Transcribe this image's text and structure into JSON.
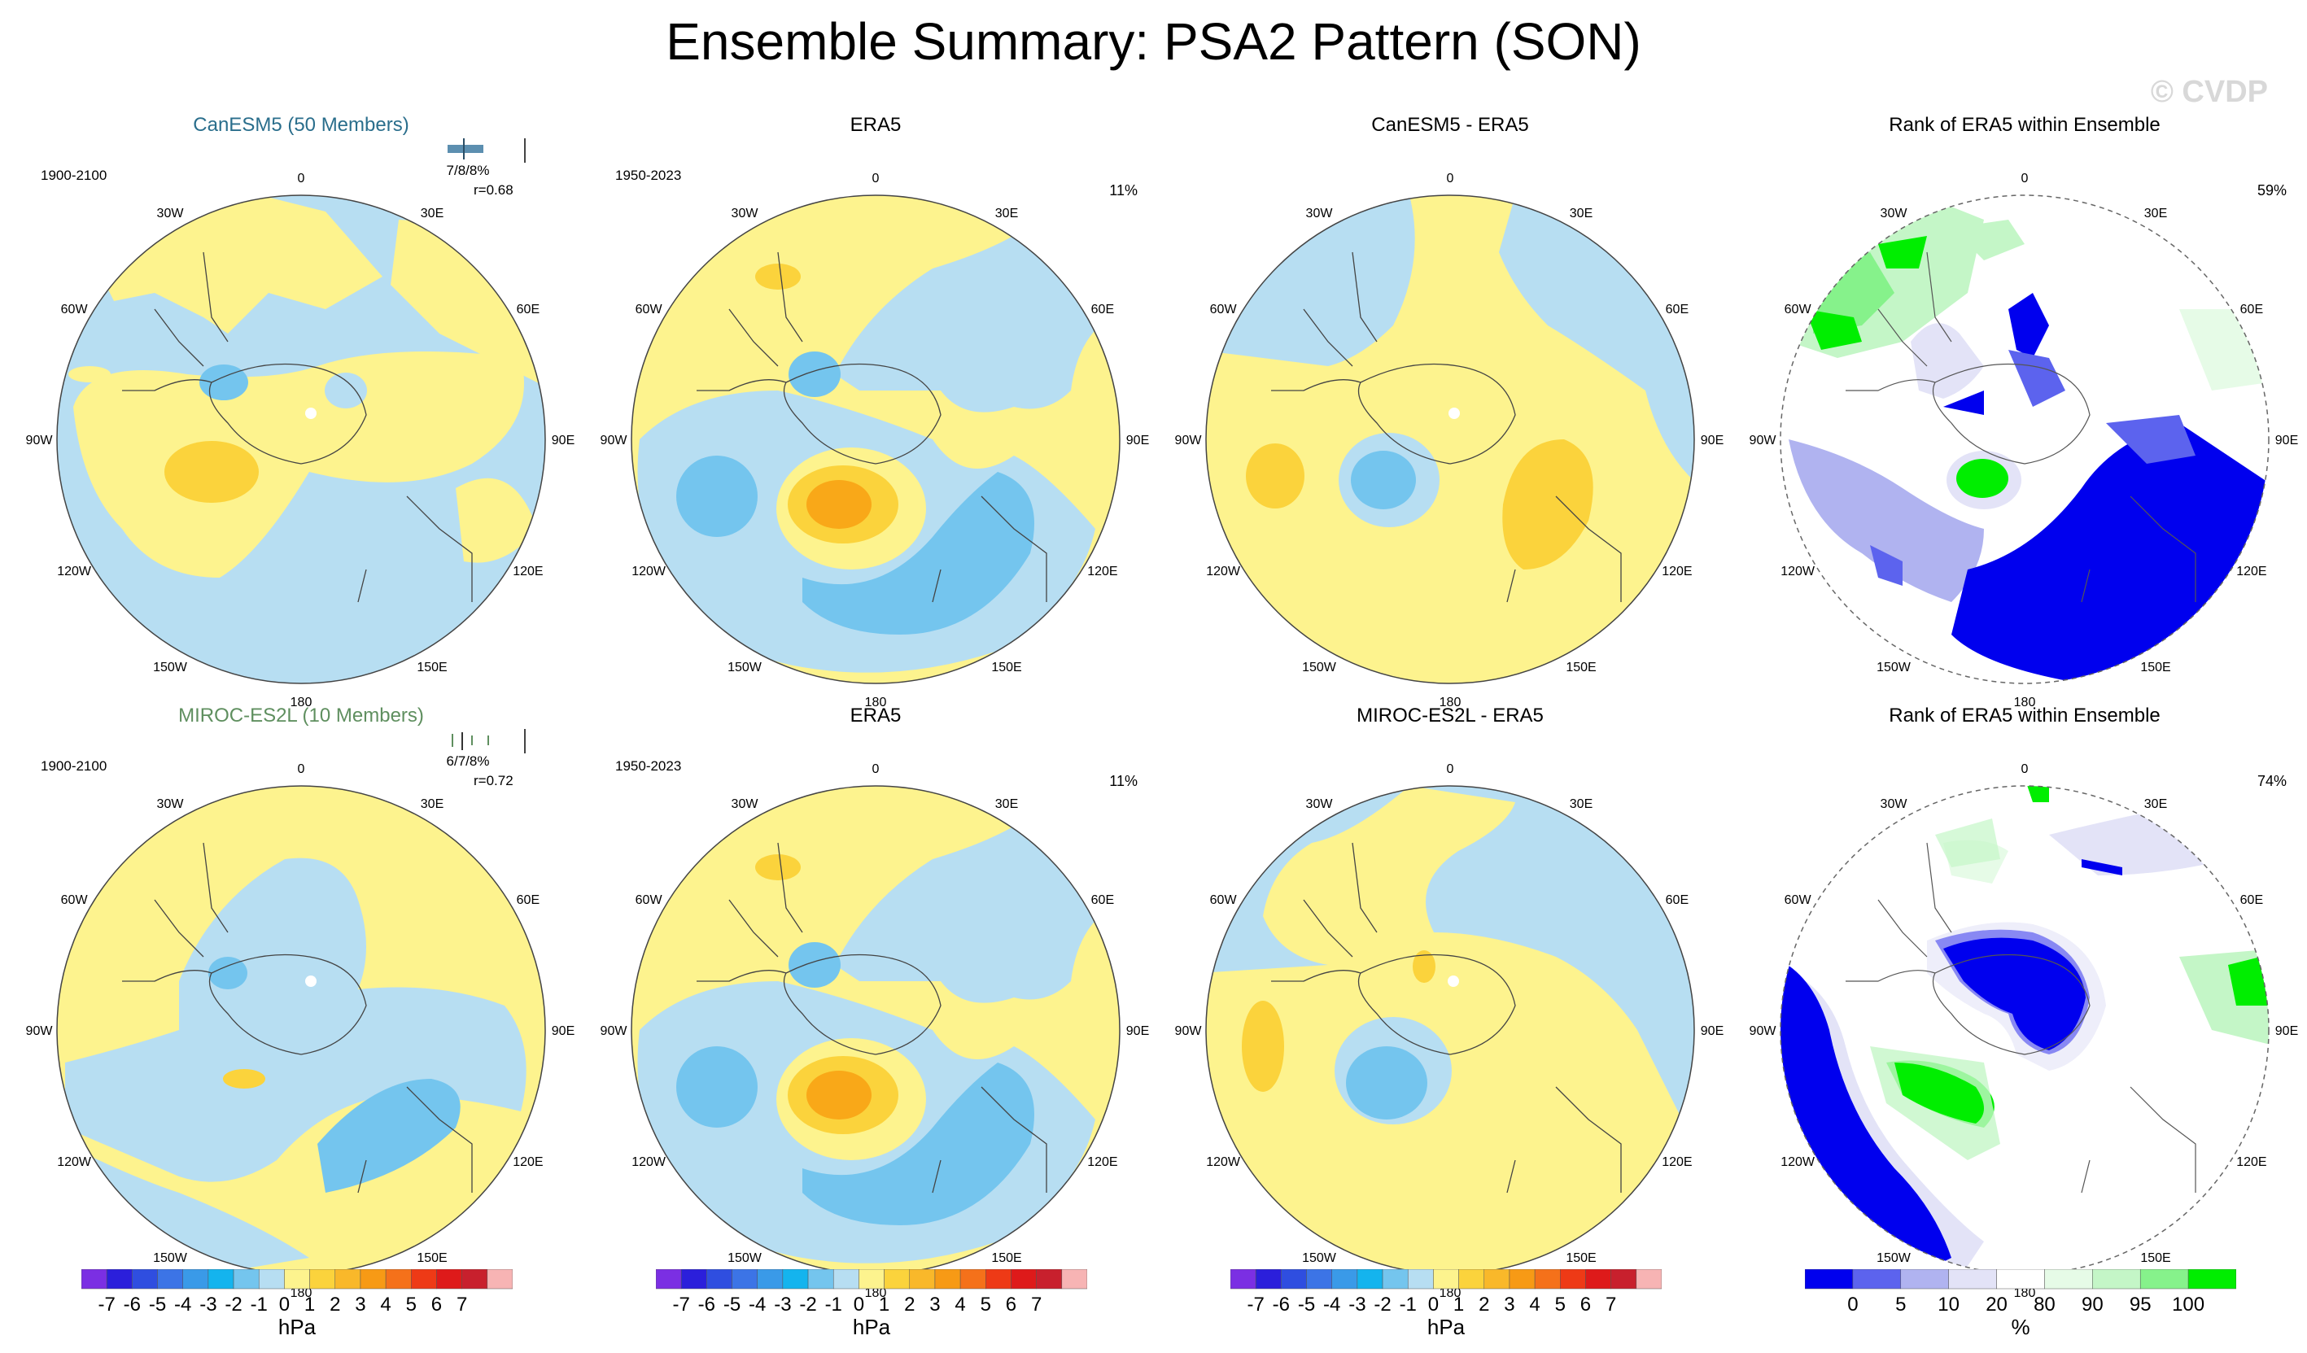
{
  "title": "Ensemble Summary: PSA2 Pattern (SON)",
  "watermark": "© CVDP",
  "lon_labels": [
    "0",
    "30E",
    "60E",
    "90E",
    "120E",
    "150E",
    "180",
    "150W",
    "120W",
    "90W",
    "60W",
    "30W"
  ],
  "colors": {
    "neg1": "#b7def2",
    "neg2": "#74c5ee",
    "neg3": "#3aa7e8",
    "pos1": "#fdf38e",
    "pos2": "#fbd33c",
    "pos3": "#f9a818",
    "rank_blue": "#0000ee",
    "rank_blue2": "#5c63ee",
    "rank_blue3": "#b0b3f0",
    "rank_blue4": "#e3e3f7",
    "rank_green": "#00ee00",
    "rank_green2": "#86f28b",
    "rank_green3": "#c4f6c7",
    "rank_green4": "#e6fbe7"
  },
  "chart_data": [
    {
      "type": "heatmap",
      "id": "p1",
      "title": "CanESM5 (50 Members)",
      "period": "1900-2100",
      "spread": "7/8/8%",
      "corr": "r=0.68",
      "units": "hPa",
      "contour_levels": [
        -7,
        -6,
        -5,
        -4,
        -3,
        -2,
        -1,
        0,
        1,
        2,
        3,
        4,
        5,
        6,
        7
      ]
    },
    {
      "type": "heatmap",
      "id": "p2",
      "title": "ERA5",
      "period": "1950-2023",
      "pct": "11%",
      "units": "hPa",
      "contour_levels": [
        -7,
        -6,
        -5,
        -4,
        -3,
        -2,
        -1,
        0,
        1,
        2,
        3,
        4,
        5,
        6,
        7
      ]
    },
    {
      "type": "heatmap",
      "id": "p3",
      "title": "CanESM5 - ERA5",
      "units": "hPa",
      "contour_levels": [
        -7,
        -6,
        -5,
        -4,
        -3,
        -2,
        -1,
        0,
        1,
        2,
        3,
        4,
        5,
        6,
        7
      ]
    },
    {
      "type": "heatmap",
      "id": "p4",
      "title": "Rank of ERA5 within Ensemble",
      "pct": "59%",
      "units": "%",
      "levels": [
        0,
        5,
        10,
        20,
        80,
        90,
        95,
        100
      ]
    },
    {
      "type": "heatmap",
      "id": "p5",
      "title": "MIROC-ES2L (10 Members)",
      "period": "1900-2100",
      "spread": "6/7/8%",
      "corr": "r=0.72",
      "units": "hPa",
      "contour_levels": [
        -7,
        -6,
        -5,
        -4,
        -3,
        -2,
        -1,
        0,
        1,
        2,
        3,
        4,
        5,
        6,
        7
      ]
    },
    {
      "type": "heatmap",
      "id": "p6",
      "title": "ERA5",
      "period": "1950-2023",
      "pct": "11%",
      "units": "hPa",
      "contour_levels": [
        -7,
        -6,
        -5,
        -4,
        -3,
        -2,
        -1,
        0,
        1,
        2,
        3,
        4,
        5,
        6,
        7
      ]
    },
    {
      "type": "heatmap",
      "id": "p7",
      "title": "MIROC-ES2L - ERA5",
      "units": "hPa",
      "contour_levels": [
        -7,
        -6,
        -5,
        -4,
        -3,
        -2,
        -1,
        0,
        1,
        2,
        3,
        4,
        5,
        6,
        7
      ]
    },
    {
      "type": "heatmap",
      "id": "p8",
      "title": "Rank of ERA5 within Ensemble",
      "pct": "74%",
      "units": "%",
      "levels": [
        0,
        5,
        10,
        20,
        80,
        90,
        95,
        100
      ]
    }
  ],
  "colorbars": {
    "hpa": {
      "colors": [
        "#7b2fe3",
        "#2b1fdb",
        "#2f4ee0",
        "#3c74e6",
        "#3a9ae8",
        "#14b4ee",
        "#74c5ee",
        "#b7def2",
        "#fdf38e",
        "#fbd33c",
        "#f9b82a",
        "#f79a15",
        "#f5711a",
        "#ee3a16",
        "#de1a1a",
        "#c8202d",
        "#f7b4b4"
      ],
      "labels": [
        "-7",
        "-6",
        "-5",
        "-4",
        "-3",
        "-2",
        "-1",
        "0",
        "1",
        "2",
        "3",
        "4",
        "5",
        "6",
        "7"
      ],
      "unit": "hPa"
    },
    "rank": {
      "colors": [
        "#0000ee",
        "#5c63ee",
        "#b0b3f0",
        "#e3e3f7",
        "#ffffff",
        "#e6fbe7",
        "#c4f6c7",
        "#86f28b",
        "#00ee00"
      ],
      "labels": [
        "0",
        "5",
        "10",
        "20",
        "80",
        "90",
        "95",
        "100"
      ],
      "unit": "%"
    }
  }
}
